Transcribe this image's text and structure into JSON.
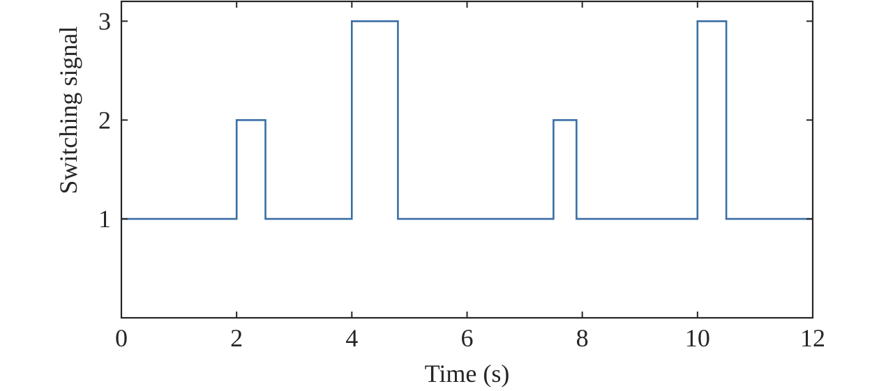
{
  "chart_data": {
    "type": "line",
    "step": true,
    "title": "",
    "xlabel": "Time (s)",
    "ylabel": "Switching signal",
    "xlim": [
      0,
      12
    ],
    "ylim": [
      0,
      3.2
    ],
    "xticks": [
      "0",
      "2",
      "4",
      "6",
      "8",
      "10",
      "12"
    ],
    "yticks": [
      "1",
      "2",
      "3"
    ],
    "grid": false,
    "legend": "none",
    "series": [
      {
        "color": "#3a6ea5",
        "x": [
          0,
          2.0,
          2.0,
          2.5,
          2.5,
          4.0,
          4.0,
          4.8,
          4.8,
          7.5,
          7.5,
          7.9,
          7.9,
          10.0,
          10.0,
          10.5,
          10.5,
          12.0
        ],
        "y": [
          1,
          1,
          2,
          2,
          1,
          1,
          3,
          3,
          1,
          1,
          2,
          2,
          1,
          1,
          3,
          3,
          1,
          1
        ]
      }
    ]
  }
}
